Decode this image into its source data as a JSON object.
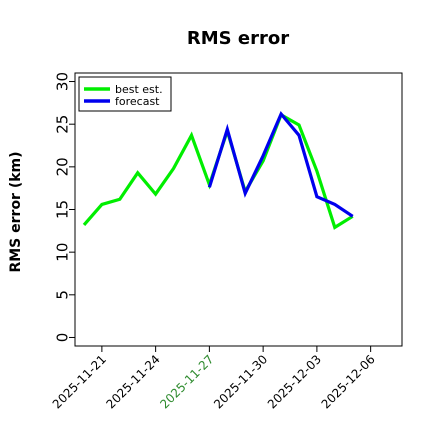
{
  "chart_data": {
    "type": "line",
    "title": "RMS error",
    "xlabel": "",
    "ylabel": "RMS error (km)",
    "ylim": [
      -1,
      31
    ],
    "yticks": [
      0,
      5,
      10,
      15,
      20,
      25,
      30
    ],
    "xticks": [
      {
        "label": "2025-11-21",
        "date": "2025-11-21",
        "color": "#000000"
      },
      {
        "label": "2025-11-24",
        "date": "2025-11-24",
        "color": "#000000"
      },
      {
        "label": "2025-11-27",
        "date": "2025-11-27",
        "color": "#2e8b2e"
      },
      {
        "label": "2025-11-30",
        "date": "2025-11-30",
        "color": "#000000"
      },
      {
        "label": "2025-12-03",
        "date": "2025-12-03",
        "color": "#000000"
      },
      {
        "label": "2025-12-06",
        "date": "2025-12-06",
        "color": "#000000"
      }
    ],
    "xlim": [
      "2025-11-19 12:00",
      "2025-12-07 18:00"
    ],
    "grid": false,
    "legend": "top-left",
    "series": [
      {
        "name": "best est.",
        "color": "#00ee00",
        "x": [
          "2025-11-20",
          "2025-11-21",
          "2025-11-22",
          "2025-11-23",
          "2025-11-24",
          "2025-11-25",
          "2025-11-26",
          "2025-11-27",
          "2025-11-28",
          "2025-11-29",
          "2025-11-30",
          "2025-12-01",
          "2025-12-02",
          "2025-12-03",
          "2025-12-04",
          "2025-12-05"
        ],
        "values": [
          13.2,
          15.6,
          16.2,
          19.3,
          16.8,
          19.8,
          23.7,
          17.9,
          24.2,
          17.1,
          20.7,
          26.1,
          24.9,
          19.5,
          12.9,
          14.2
        ]
      },
      {
        "name": "forecast",
        "color": "#0000ee",
        "x": [
          "2025-11-27",
          "2025-11-28",
          "2025-11-29",
          "2025-11-30",
          "2025-12-01",
          "2025-12-02",
          "2025-12-03",
          "2025-12-04",
          "2025-12-05"
        ],
        "values": [
          17.6,
          24.4,
          16.9,
          21.3,
          26.2,
          23.7,
          16.5,
          15.6,
          14.2
        ]
      }
    ]
  }
}
